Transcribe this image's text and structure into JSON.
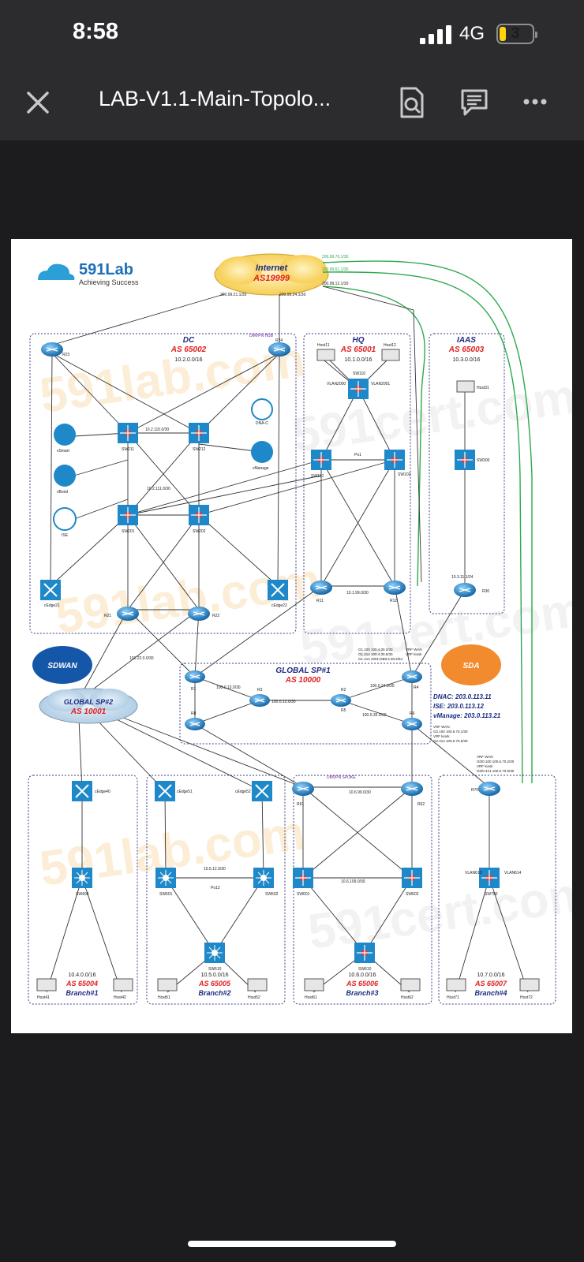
{
  "status": {
    "time": "8:58",
    "network": "4G",
    "battery": "3"
  },
  "toolbar": {
    "title": "LAB-V1.1-Main-Topolo..."
  },
  "topology": {
    "logo": {
      "name": "591Lab",
      "tagline": "Achieving Success"
    },
    "internet": {
      "label": "Internet",
      "as": "AS19999"
    },
    "dc": {
      "title": "DC",
      "as": "AS 65002",
      "subnet": "10.2.0.0/16"
    },
    "hq": {
      "title": "HQ",
      "as": "AS 65001",
      "subnet": "10.1.0.0/16"
    },
    "iaas": {
      "title": "IAAS",
      "as": "AS 65003",
      "subnet": "10.3.0.0/16"
    },
    "sdwan": "SDWAN",
    "sda": "SDA",
    "sp1": {
      "title": "GLOBAL SP#1",
      "as": "AS 10000"
    },
    "sp2": {
      "title": "GLOBAL SP#2",
      "as": "AS 10001"
    },
    "dnac": "DNAC: 203.0.113.11",
    "ise": "ISE: 203.0.113.12",
    "vmanage": "vManage: 203.0.113.21",
    "branches": [
      {
        "subnet": "10.4.0.0/16",
        "as": "AS 65004",
        "name": "Branch#1"
      },
      {
        "subnet": "10.5.0.0/16",
        "as": "AS 65005",
        "name": "Branch#2"
      },
      {
        "subnet": "10.6.0.0/16",
        "as": "AS 65006",
        "name": "Branch#3"
      },
      {
        "subnet": "10.7.0.0/16",
        "as": "AS 65007",
        "name": "Branch#4"
      }
    ],
    "devices": {
      "r23": "R23",
      "r24": "R24",
      "dmvpn_hub": "DMVPN HUB",
      "sw211": "SW211",
      "sw212": "SW212",
      "sw201": "SW201",
      "sw202": "SW202",
      "cedge21": "cEdge21",
      "cedge22": "cEdge22",
      "r21": "R21",
      "r22": "R22",
      "vsmart": "vSmart",
      "vbond": "vBond",
      "ise_dev": "ISE",
      "dnac_dev": "DNA-C",
      "vmanage_dev": "vManage",
      "host11": "Host11",
      "host12": "Host12",
      "sw110": "SW110",
      "sw101": "SW101",
      "sw102": "SW102",
      "r11": "R11",
      "r12": "R12",
      "host31": "Host31",
      "sw300": "SW300",
      "r30": "R30",
      "r1": "R1",
      "r2": "R2",
      "r3": "R3",
      "r4": "R4",
      "r5": "R5",
      "r6": "R6",
      "r8": "R8",
      "cedge40": "cEdge40",
      "sw400": "SW400",
      "host41": "Host41",
      "host42": "Host42",
      "cedge51": "cEdge51",
      "cedge52": "cEdge52",
      "sw501": "SW501",
      "sw502": "SW502",
      "sw510": "SW510",
      "host51": "Host51",
      "host52": "Host52",
      "r61": "R61",
      "r62": "R62",
      "sw601": "SW601",
      "sw602": "SW602",
      "sw610": "SW610",
      "host61": "Host61",
      "host62": "Host62",
      "dmvpn_spoke": "DMVPN SPOKE",
      "r70": "R70",
      "sw700": "SW700",
      "host71": "Host71",
      "host72": "Host72"
    },
    "links": {
      "inet_a": "200.99.21.1/30",
      "inet_b": "200.99.24.1/30",
      "inet_c": "200.99.12.1/30",
      "inet_d": "200.99.70.1/30",
      "inet_e": "200.99.61.1/30",
      "vlan2000": "VLAN2000",
      "vlan2001": "VLAN2001",
      "po1": "Po1",
      "po12": "Po12",
      "l_10_2_110": "10.2.110.0/30",
      "l_10_2_111": "10.2.111.0/30",
      "l_10_1_99": "10.1.99.0/30",
      "l_10_1_11": "10.1.11.0/30",
      "l_10_3_11": "10.3.11.1/24",
      "l_101_22": "101.22.0.0/30",
      "l_100_0_12": "100.0.12.0/30",
      "l_100_0_13": "100.0.13.0/30",
      "l_100_0_24": "100.0.24.0/30",
      "l_100_0_35": "100.0.35.0/30",
      "l_10_5_12": "10.5.12.0/30",
      "l_10_6_99": "10.6.99.0/30",
      "l_10_6_109": "10.6.109.0/30",
      "vlan610": "VLAN610",
      "vlan614": "VLAN614",
      "vrf_lines": [
        "G1.100  100.4.30.2/30",
        "G1.414  100.4.30.6/30",
        "G1.414  2001:DB8:4:30:2/64"
      ],
      "vrf_wan": [
        "VRF WAN",
        "VRF kiosk"
      ],
      "sp1_vrf": [
        "VRF WAN",
        "G2.100  100.6.70.1/30",
        "VRF kiosk",
        "G2.414  100.6.70.5/30"
      ],
      "br4_vrf": [
        "VRF WAN",
        "G0/0.100  100.6.70.2/30",
        "VRF kiosk",
        "G0/0.414  100.6.70.6/30"
      ]
    }
  }
}
